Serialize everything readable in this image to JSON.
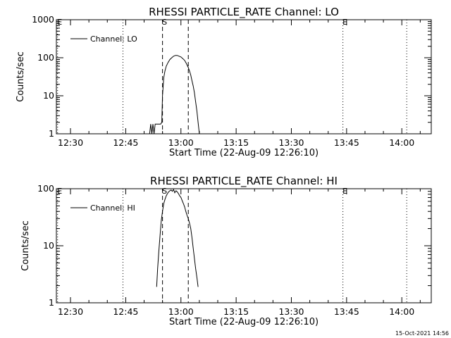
{
  "timestamp": "15-Oct-2021 14:56",
  "chart_data": [
    {
      "type": "line",
      "title": "RHESSI PARTICLE_RATE Channel: LO",
      "xlabel": "Start Time (22-Aug-09 12:26:10)",
      "ylabel": "Counts/sec",
      "xscale": "time",
      "yscale": "log",
      "xlim": [
        "12:26:10",
        "14:08:00"
      ],
      "ylim": [
        1,
        1000
      ],
      "xticks": [
        "12:30",
        "12:45",
        "13:00",
        "13:15",
        "13:30",
        "13:45",
        "14:00"
      ],
      "yticks": [
        "1",
        "10",
        "100",
        "1000"
      ],
      "legend": {
        "position": "top-left",
        "entries": [
          "Channel: LO"
        ]
      },
      "markers": [
        {
          "label": "E",
          "time": "12:26:30",
          "style": "dotted"
        },
        {
          "label": "",
          "time": "12:44:15",
          "style": "dotted"
        },
        {
          "label": "S",
          "time": "12:55:00",
          "style": "dashed"
        },
        {
          "label": "",
          "time": "13:02:00",
          "style": "dashed"
        },
        {
          "label": "E",
          "time": "13:44:00",
          "style": "dotted"
        },
        {
          "label": "",
          "time": "14:01:20",
          "style": "dotted"
        }
      ],
      "series": [
        {
          "x": [
            "12:51:30",
            "12:51:48",
            "12:52:06",
            "12:52:24",
            "12:52:42",
            "12:53:00",
            "12:53:18",
            "12:53:36",
            "12:53:54",
            "12:54:12",
            "12:54:30",
            "12:54:48",
            "12:55:00",
            "12:55:20",
            "12:55:40",
            "12:56:00",
            "12:56:30",
            "12:57:00",
            "12:57:30",
            "12:58:00",
            "12:58:30",
            "12:59:00",
            "12:59:30",
            "13:00:00",
            "13:00:30",
            "13:01:00",
            "13:01:30",
            "13:02:00",
            "13:02:20",
            "13:02:40",
            "13:03:00",
            "13:03:20",
            "13:03:40",
            "13:04:00",
            "13:04:20",
            "13:04:40",
            "13:05:00"
          ],
          "y": [
            1,
            1.8,
            1,
            1.8,
            1,
            1.8,
            1.8,
            1.8,
            1.8,
            1.8,
            1.8,
            2.0,
            10,
            30,
            45,
            60,
            75,
            90,
            100,
            110,
            115,
            115,
            110,
            105,
            95,
            85,
            70,
            55,
            45,
            35,
            25,
            18,
            12,
            7,
            4,
            2,
            1
          ]
        }
      ]
    },
    {
      "type": "line",
      "title": "RHESSI PARTICLE_RATE Channel: HI",
      "xlabel": "Start Time (22-Aug-09 12:26:10)",
      "ylabel": "Counts/sec",
      "xscale": "time",
      "yscale": "log",
      "xlim": [
        "12:26:10",
        "14:08:00"
      ],
      "ylim": [
        1,
        100
      ],
      "xticks": [
        "12:30",
        "12:45",
        "13:00",
        "13:15",
        "13:30",
        "13:45",
        "14:00"
      ],
      "yticks": [
        "1",
        "10",
        "100"
      ],
      "legend": {
        "position": "top-left",
        "entries": [
          "Channel: HI"
        ]
      },
      "markers": [
        {
          "label": "E",
          "time": "12:26:30",
          "style": "dotted"
        },
        {
          "label": "",
          "time": "12:44:15",
          "style": "dotted"
        },
        {
          "label": "S",
          "time": "12:55:00",
          "style": "dashed"
        },
        {
          "label": "",
          "time": "13:02:00",
          "style": "dashed"
        },
        {
          "label": "E",
          "time": "13:44:00",
          "style": "dotted"
        },
        {
          "label": "",
          "time": "14:01:20",
          "style": "dotted"
        }
      ],
      "series": [
        {
          "x": [
            "12:53:24",
            "12:53:40",
            "12:54:00",
            "12:54:20",
            "12:54:40",
            "12:55:00",
            "12:55:20",
            "12:55:40",
            "12:56:00",
            "12:56:20",
            "12:56:40",
            "12:57:00",
            "12:57:20",
            "12:57:40",
            "12:58:00",
            "12:58:20",
            "12:58:40",
            "12:59:00",
            "12:59:20",
            "12:59:40",
            "13:00:00",
            "13:00:20",
            "13:00:40",
            "13:01:00",
            "13:01:20",
            "13:01:40",
            "13:02:00",
            "13:02:20",
            "13:02:40",
            "13:03:00",
            "13:03:20",
            "13:03:40",
            "13:04:00",
            "13:04:20",
            "13:04:40"
          ],
          "y": [
            1.9,
            4,
            8,
            15,
            28,
            40,
            55,
            65,
            75,
            82,
            88,
            92,
            95,
            90,
            97,
            85,
            92,
            88,
            82,
            75,
            70,
            62,
            55,
            48,
            40,
            34,
            30,
            25,
            20,
            14,
            9,
            6,
            4,
            2.8,
            1.9
          ]
        }
      ]
    }
  ]
}
